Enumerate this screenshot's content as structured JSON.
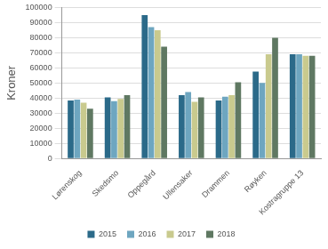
{
  "chart_data": {
    "type": "bar",
    "y_label": "Kroner",
    "categories": [
      "Lørenskog",
      "Skedsmo",
      "Oppegård",
      "Ullensaker",
      "Drammen",
      "Røyken",
      "Kostragruppe 13"
    ],
    "series": [
      {
        "name": "2015",
        "color": "#2b6a89",
        "values": [
          38500,
          40500,
          95000,
          42000,
          38500,
          57500,
          69000
        ]
      },
      {
        "name": "2016",
        "color": "#6ea6c0",
        "values": [
          39000,
          38000,
          87000,
          44000,
          41000,
          50000,
          69000
        ]
      },
      {
        "name": "2017",
        "color": "#c9ca8e",
        "values": [
          37000,
          39500,
          85000,
          37500,
          42000,
          69000,
          68000
        ]
      },
      {
        "name": "2018",
        "color": "#5f7862",
        "values": [
          33000,
          42000,
          74000,
          40500,
          50500,
          80000,
          68000
        ]
      }
    ],
    "ylim": [
      0,
      100000
    ],
    "yticks": [
      0,
      10000,
      20000,
      30000,
      40000,
      50000,
      60000,
      70000,
      80000,
      90000,
      100000
    ],
    "grid": true,
    "legend": "bottom"
  }
}
